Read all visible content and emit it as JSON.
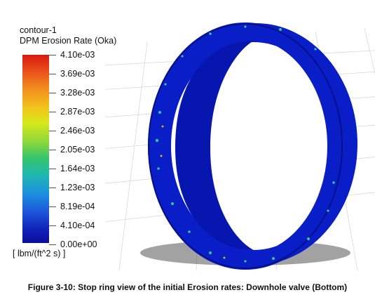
{
  "legend": {
    "title": "contour-1",
    "subtitle": "DPM Erosion Rate (Oka)",
    "ticks": [
      "4.10e-03",
      "3.69e-03",
      "3.28e-03",
      "2.87e-03",
      "2.46e-03",
      "2.05e-03",
      "1.64e-03",
      "1.23e-03",
      "8.19e-04",
      "4.10e-04",
      "0.00e+00"
    ],
    "units": "[ lbm/(ft^2 s) ]"
  },
  "caption": "Figure 3-10: Stop ring view of the initial Erosion rates: Downhole valve (Bottom)",
  "colors": {
    "ring_blue": "#0a1ec8",
    "ring_dark": "#06108a",
    "hot_spot": "#36c7a0"
  }
}
